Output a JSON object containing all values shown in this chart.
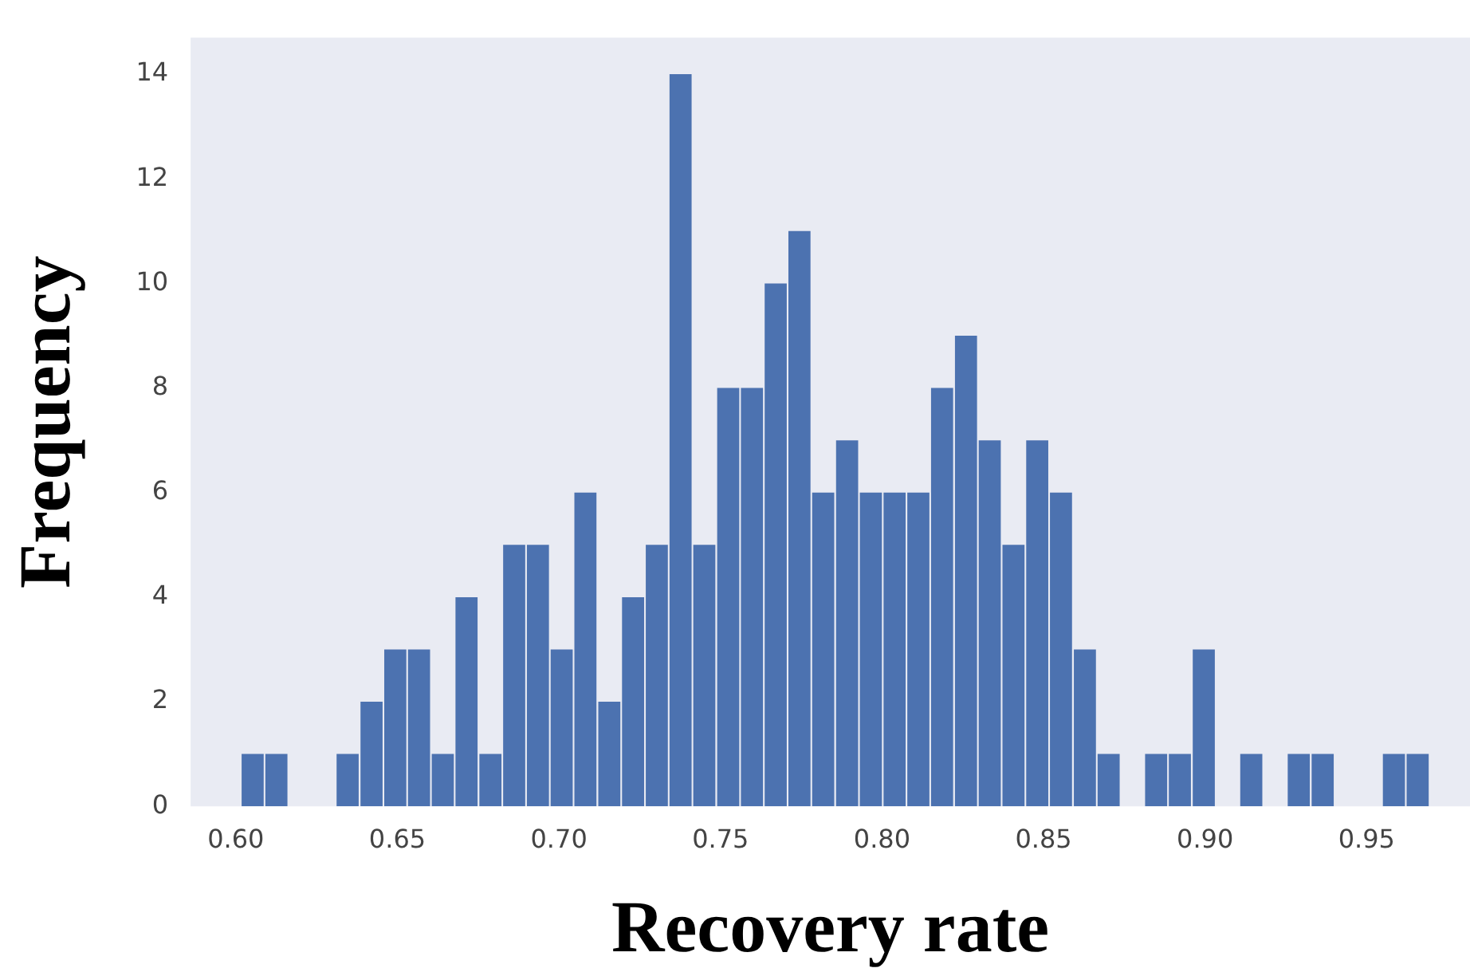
{
  "chart_data": {
    "type": "histogram",
    "xlabel": "Recovery rate",
    "ylabel": "Frequency",
    "color": "#4c72b0",
    "bins": [
      0.6015,
      0.6089,
      0.6162,
      0.6236,
      0.6309,
      0.6383,
      0.6457,
      0.653,
      0.6604,
      0.6677,
      0.6751,
      0.6825,
      0.6898,
      0.6972,
      0.7045,
      0.7119,
      0.7193,
      0.7266,
      0.734,
      0.7413,
      0.7487,
      0.7561,
      0.7634,
      0.7708,
      0.7781,
      0.7855,
      0.7929,
      0.8002,
      0.8076,
      0.8149,
      0.8223,
      0.8297,
      0.837,
      0.8444,
      0.8517,
      0.8591,
      0.8665,
      0.8738,
      0.8812,
      0.8885,
      0.8959,
      0.9033,
      0.9106,
      0.918,
      0.9253,
      0.9327,
      0.9401,
      0.9474,
      0.9548,
      0.9621,
      0.9695
    ],
    "values": [
      1,
      1,
      0,
      0,
      1,
      2,
      3,
      3,
      1,
      4,
      1,
      5,
      5,
      3,
      6,
      2,
      4,
      5,
      14,
      5,
      8,
      8,
      10,
      11,
      6,
      7,
      6,
      6,
      6,
      8,
      9,
      7,
      5,
      7,
      6,
      3,
      1,
      0,
      1,
      1,
      3,
      0,
      1,
      0,
      1,
      1,
      0,
      0,
      1,
      1
    ],
    "xlim": [
      0.586,
      0.982
    ],
    "xticks": [
      {
        "value": 0.6,
        "label": "0.60"
      },
      {
        "value": 0.65,
        "label": "0.65"
      },
      {
        "value": 0.7,
        "label": "0.70"
      },
      {
        "value": 0.75,
        "label": "0.75"
      },
      {
        "value": 0.8,
        "label": "0.80"
      },
      {
        "value": 0.85,
        "label": "0.85"
      },
      {
        "value": 0.9,
        "label": "0.90"
      },
      {
        "value": 0.95,
        "label": "0.95"
      }
    ],
    "ylim": [
      0,
      14.7
    ],
    "yticks": [
      0,
      2,
      4,
      6,
      8,
      10,
      12,
      14
    ],
    "grid": false,
    "legend": false
  }
}
